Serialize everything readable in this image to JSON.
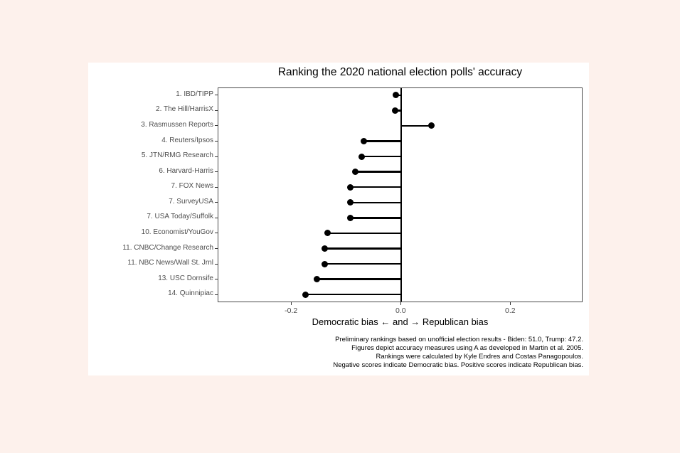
{
  "page": {
    "background_color": "#fdf1ec",
    "card_background_color": "#ffffff"
  },
  "chart_data": {
    "type": "bar",
    "style": "lollipop",
    "orientation": "horizontal",
    "title": "Ranking the 2020 national election polls' accuracy",
    "xlabel": "Democratic bias ← and → Republican bias",
    "ylabel": "",
    "categories": [
      "1. IBD/TIPP",
      "2. The Hill/HarrisX",
      "3. Rasmussen Reports",
      "4. Reuters/Ipsos",
      "5. JTN/RMG Research",
      "6. Harvard-Harris",
      "7. FOX News",
      "7. SurveyUSA",
      "7. USA Today/Suffolk",
      "10. Economist/YouGov",
      "11. CNBC/Change Research",
      "11. NBC News/Wall St. Jrnl",
      "13. USC Dornsife",
      "14. Quinnipiac"
    ],
    "values": [
      -0.01,
      -0.012,
      0.055,
      -0.069,
      -0.073,
      -0.084,
      -0.093,
      -0.093,
      -0.093,
      -0.135,
      -0.14,
      -0.14,
      -0.154,
      -0.175
    ],
    "baseline": 0,
    "x_ticks": [
      -0.2,
      0.0,
      0.2
    ],
    "x_tick_labels": [
      "-0.2",
      "0.0",
      "0.2"
    ],
    "xlim": [
      -0.334,
      0.332
    ],
    "grid": false,
    "legend": false,
    "colors": {
      "point": "#000000",
      "stem": "#000000",
      "baseline": "#000000",
      "axis_text": "#4d4d4d",
      "panel_border": "#4a4a4a"
    }
  },
  "caption": {
    "lines": [
      "Preliminary rankings based on unofficial election results - Biden: 51.0, Trump: 47.2.",
      "Figures depict accuracy measures using A as developed in Martin et al. 2005.",
      "Rankings were calculated by Kyle Endres and Costas Panagopoulos.",
      "Negative scores indicate Democratic bias. Positive scores indicate Republican bias."
    ]
  }
}
